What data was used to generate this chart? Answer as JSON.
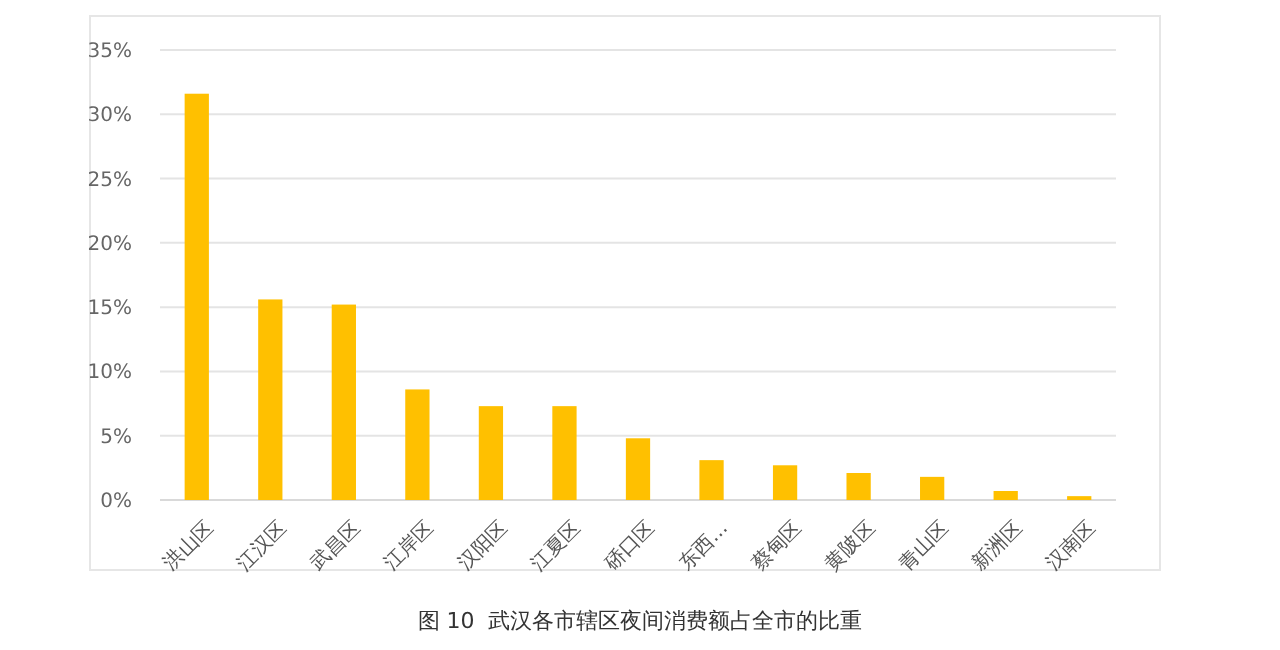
{
  "chart_data": {
    "type": "bar",
    "title": "图 10  武汉各市辖区夜间消费额占全市的比重",
    "categories": [
      "洪山区",
      "江汉区",
      "武昌区",
      "江岸区",
      "汉阳区",
      "江夏区",
      "硚口区",
      "东西...",
      "蔡甸区",
      "黄陂区",
      "青山区",
      "新洲区",
      "汉南区"
    ],
    "values": [
      31.6,
      15.6,
      15.2,
      8.6,
      7.3,
      7.3,
      4.8,
      3.1,
      2.7,
      2.1,
      1.8,
      0.7,
      0.3
    ],
    "color": "#ffc000",
    "ylim": [
      0,
      35
    ],
    "yticks": [
      {
        "value": 0,
        "label": "0%"
      },
      {
        "value": 5,
        "label": "5%"
      },
      {
        "value": 10,
        "label": "10%"
      },
      {
        "value": 15,
        "label": "15%"
      },
      {
        "value": 20,
        "label": "20%"
      },
      {
        "value": 25,
        "label": "25%"
      },
      {
        "value": 30,
        "label": "30%"
      },
      {
        "value": 35,
        "label": "35%"
      }
    ],
    "grid": "y"
  }
}
